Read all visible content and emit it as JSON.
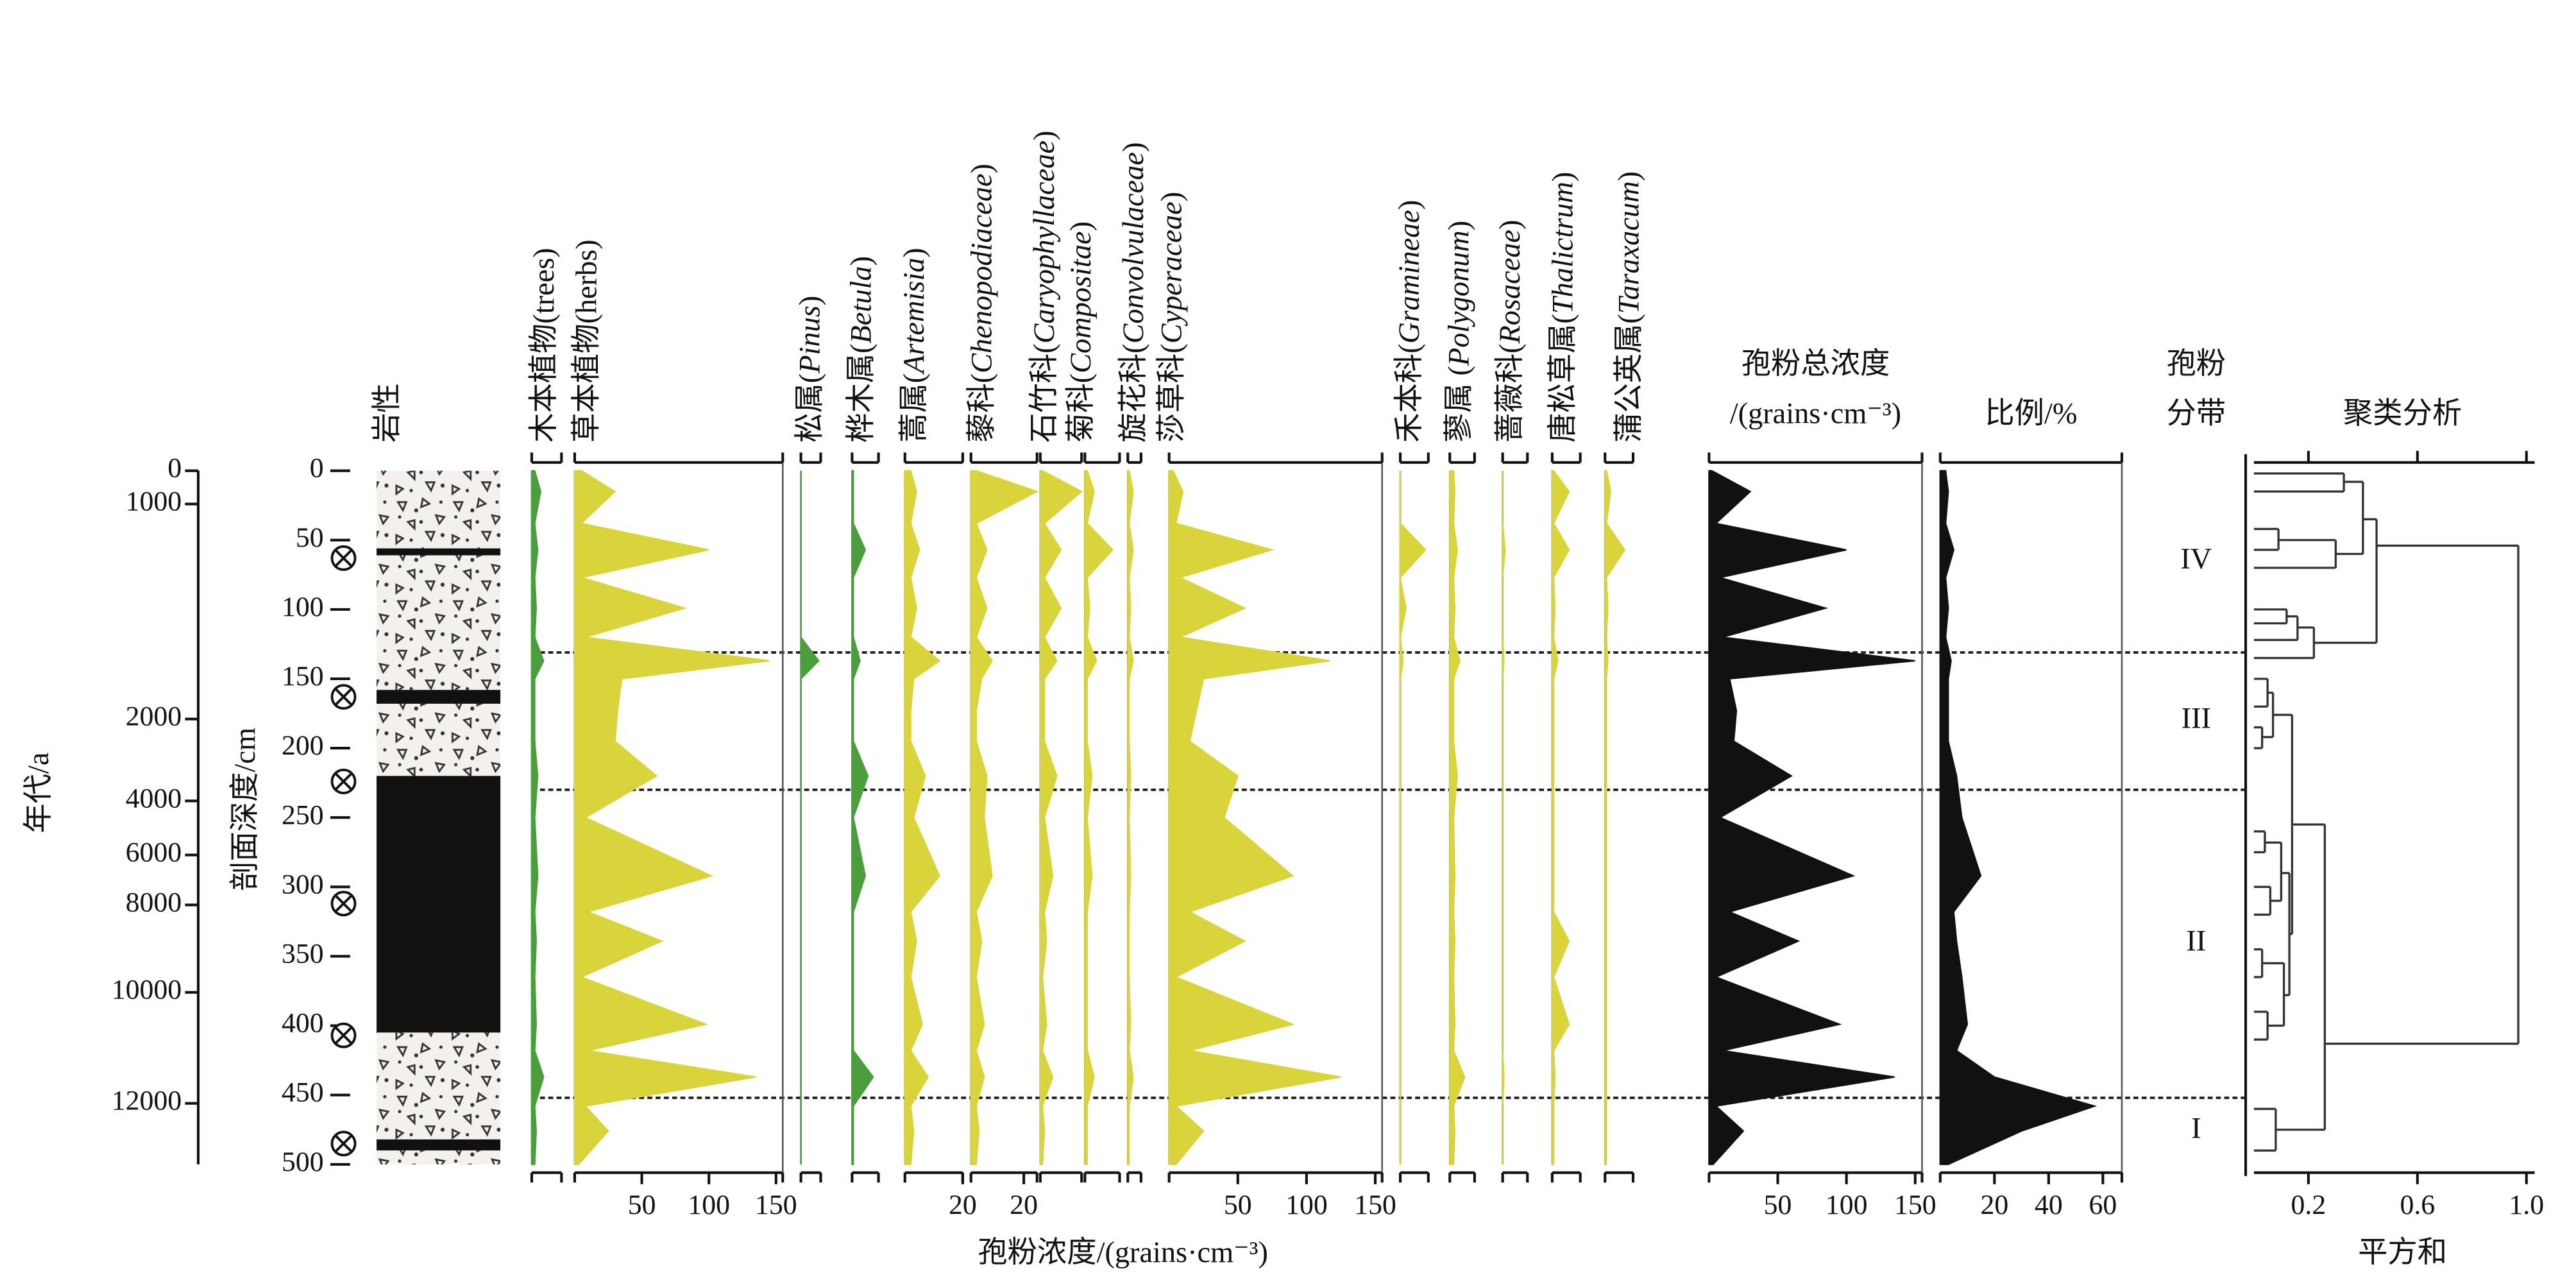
{
  "chart_data": {
    "type": "area",
    "x_label": "孢粉浓度/(grains·cm⁻³)",
    "age_label": "年代/a",
    "depth_label": "剖面深度/cm",
    "lithology_title": "岩性",
    "zone_title": [
      "孢粉",
      "分带"
    ],
    "ylim": [
      0,
      500
    ],
    "yticks": [
      0,
      50,
      100,
      150,
      200,
      250,
      300,
      350,
      400,
      450,
      500
    ],
    "age_ticks": [
      {
        "value": 0,
        "depth": 0
      },
      {
        "value": 1000,
        "depth": 24
      },
      {
        "value": 2000,
        "depth": 179
      },
      {
        "value": 4000,
        "depth": 238
      },
      {
        "value": 6000,
        "depth": 277
      },
      {
        "value": 8000,
        "depth": 313
      },
      {
        "value": 10000,
        "depth": 376
      },
      {
        "value": 12000,
        "depth": 456
      }
    ],
    "dating_depths": [
      63,
      163,
      224,
      312,
      407,
      485
    ],
    "lithology": [
      {
        "top": 0,
        "bottom": 56,
        "style": "gravel"
      },
      {
        "top": 56,
        "bottom": 61,
        "style": "clay"
      },
      {
        "top": 61,
        "bottom": 158,
        "style": "gravel"
      },
      {
        "top": 158,
        "bottom": 168,
        "style": "clay"
      },
      {
        "top": 168,
        "bottom": 220,
        "style": "gravel"
      },
      {
        "top": 220,
        "bottom": 405,
        "style": "clay"
      },
      {
        "top": 405,
        "bottom": 482,
        "style": "gravel"
      },
      {
        "top": 482,
        "bottom": 490,
        "style": "clay"
      },
      {
        "top": 490,
        "bottom": 500,
        "style": "gravel"
      }
    ],
    "zones": [
      {
        "label": "IV",
        "top": 0,
        "bottom": 131
      },
      {
        "label": "III",
        "top": 131,
        "bottom": 230
      },
      {
        "label": "II",
        "top": 230,
        "bottom": 452
      },
      {
        "label": "I",
        "top": 452,
        "bottom": 500
      }
    ],
    "depths": [
      0,
      15,
      38,
      57,
      77,
      99,
      120,
      137,
      150,
      173,
      195,
      220,
      250,
      292,
      318,
      339,
      365,
      399,
      418,
      437,
      458,
      476,
      500
    ],
    "panels": [
      {
        "label": "木本植物(trees)",
        "color": "#4a9e3c",
        "xlim": [
          0,
          10
        ],
        "values": [
          1,
          3,
          1,
          2,
          1,
          1.5,
          1,
          4,
          1,
          1,
          1,
          2,
          1,
          2,
          1,
          1.5,
          1,
          1.5,
          1,
          4,
          1,
          1.5,
          1
        ]
      },
      {
        "label": "草本植物(herbs)",
        "color": "#d9d43a",
        "xlim": [
          0,
          155
        ],
        "xticks": [
          50,
          100,
          150
        ],
        "values": [
          5,
          30,
          5,
          100,
          5,
          82,
          8,
          145,
          35,
          32,
          30,
          61,
          8,
          102,
          10,
          65,
          5,
          98,
          10,
          135,
          8,
          25,
          3
        ]
      },
      {
        "label": "松属(Pinus)",
        "italic": true,
        "color": "#4a9e3c",
        "xlim": [
          0,
          10
        ],
        "values": [
          0,
          0,
          0,
          0,
          0,
          0,
          0,
          9,
          0,
          0,
          0,
          0,
          0,
          0,
          0,
          0,
          0,
          0,
          0,
          0,
          0,
          0,
          0
        ]
      },
      {
        "label": "桦木属(Betula)",
        "italic": true,
        "color": "#4a9e3c",
        "xlim": [
          0,
          10
        ],
        "values": [
          0.5,
          0.5,
          0.5,
          5,
          0.5,
          0.5,
          0.5,
          3,
          0.5,
          0.5,
          0.5,
          6,
          0.5,
          5,
          0.5,
          0.5,
          0.5,
          0.5,
          0.5,
          8,
          0.5,
          0.5,
          0.5
        ]
      },
      {
        "label": "蒿属(Artemisia)",
        "italic": true,
        "color": "#d9d43a",
        "xlim": [
          0,
          20
        ],
        "xticks": [
          20
        ],
        "values": [
          2,
          4,
          2,
          5,
          2,
          4,
          2,
          12,
          3,
          2,
          2,
          7,
          3,
          12,
          2,
          4,
          2,
          6,
          2,
          8,
          2,
          3,
          2
        ]
      },
      {
        "label": "藜科(Chenopodiaceae)",
        "italic": true,
        "color": "#d9d43a",
        "xlim": [
          0,
          25
        ],
        "xticks": [
          20
        ],
        "values": [
          2,
          25,
          2,
          6,
          2,
          6,
          2,
          8,
          4,
          2,
          2,
          6,
          5,
          8,
          2,
          4,
          2,
          5,
          2,
          5,
          2,
          3,
          2
        ]
      },
      {
        "label": "石竹科(Caryophyllaceae)",
        "italic": true,
        "color": "#d9d43a",
        "xlim": [
          0,
          20
        ],
        "values": [
          1,
          20,
          2,
          10,
          2,
          10,
          2,
          8,
          2,
          2,
          2,
          8,
          2,
          6,
          2,
          3,
          1,
          3,
          1,
          6,
          1,
          2,
          1
        ]
      },
      {
        "label": "菊科(Compositae)",
        "italic": true,
        "color": "#d9d43a",
        "xlim": [
          0,
          15
        ],
        "values": [
          1,
          4,
          1,
          12,
          1,
          2,
          1,
          5,
          1,
          1,
          1,
          3,
          1,
          3,
          1,
          1,
          1,
          1,
          1,
          4,
          1,
          1,
          1
        ]
      },
      {
        "label": "旋花科(Convolvulaceae)",
        "italic": true,
        "color": "#d9d43a",
        "xlim": [
          0,
          5
        ],
        "values": [
          0.5,
          2,
          0.5,
          2,
          0.5,
          1,
          0.5,
          2,
          0.5,
          0.5,
          0.5,
          1,
          0.5,
          1,
          0.5,
          0.5,
          0.5,
          1,
          0.5,
          2,
          0.5,
          0.5,
          0.5
        ]
      },
      {
        "label": "莎草科(Cyperaceae)",
        "italic": true,
        "color": "#d9d43a",
        "xlim": [
          0,
          155
        ],
        "xticks": [
          50,
          100,
          150
        ],
        "values": [
          3,
          10,
          5,
          75,
          8,
          55,
          8,
          117,
          25,
          20,
          15,
          50,
          40,
          90,
          15,
          55,
          5,
          90,
          15,
          125,
          5,
          25,
          5
        ]
      },
      {
        "label": "禾本科(Gramineae)",
        "italic": true,
        "color": "#d9d43a",
        "xlim": [
          0,
          10
        ],
        "values": [
          0,
          0,
          0,
          9,
          0,
          2,
          0,
          1,
          0,
          0,
          0,
          0,
          0,
          0,
          0,
          0,
          0,
          0,
          0,
          0,
          0,
          0,
          0
        ]
      },
      {
        "label": "蓼属 (Polygonum)",
        "italic": true,
        "color": "#d9d43a",
        "xlim": [
          0,
          10
        ],
        "values": [
          1.5,
          2,
          1.5,
          3,
          1.5,
          2,
          1.5,
          4,
          1.5,
          1.5,
          1.5,
          3,
          1.5,
          2,
          1.5,
          2,
          1.5,
          2,
          1.5,
          6,
          1.5,
          2,
          1.5
        ]
      },
      {
        "label": "蔷薇科(Rosaceae)",
        "italic": true,
        "color": "#d9d43a",
        "xlim": [
          0,
          10
        ],
        "values": [
          0,
          0,
          0,
          1,
          0,
          0,
          0,
          0.5,
          0,
          0,
          0,
          0,
          0,
          0,
          0,
          0,
          0,
          0,
          0,
          0.5,
          0,
          0,
          0
        ]
      },
      {
        "label": "唐松草属(Thalictrum)",
        "italic": true,
        "color": "#d9d43a",
        "xlim": [
          0,
          10
        ],
        "values": [
          0.5,
          6,
          0.5,
          6,
          0.5,
          1,
          0.5,
          2,
          0.5,
          0.5,
          0.5,
          0.5,
          0.5,
          0.5,
          0.5,
          6,
          0.5,
          6,
          0.5,
          1,
          0.5,
          0.5,
          0.5
        ]
      },
      {
        "label": "蒲公英属(Taraxacum)",
        "italic": true,
        "color": "#d9d43a",
        "xlim": [
          0,
          10
        ],
        "values": [
          0.5,
          2,
          0.5,
          7,
          0.5,
          1,
          0.5,
          1,
          0.5,
          0.5,
          0.5,
          0.5,
          0.5,
          0.5,
          0.5,
          0.5,
          0.5,
          0.5,
          0.5,
          0.5,
          0.5,
          0.5,
          0.5
        ]
      },
      {
        "label": "孢粉总浓度",
        "sublabel": "/(grains·cm⁻³)",
        "color": "#111111",
        "xlim": [
          0,
          155
        ],
        "xticks": [
          50,
          100,
          150
        ],
        "values": [
          2,
          30,
          5,
          100,
          8,
          85,
          10,
          150,
          15,
          20,
          18,
          60,
          8,
          105,
          15,
          65,
          5,
          95,
          10,
          135,
          5,
          25,
          3
        ]
      },
      {
        "label": "比例/%",
        "color": "#111111",
        "xlim": [
          0,
          67
        ],
        "xticks": [
          20,
          40,
          60
        ],
        "values": [
          2,
          3,
          2,
          5,
          2,
          3,
          2,
          4,
          3,
          3,
          3,
          6,
          8,
          15,
          5,
          6,
          8,
          10,
          6,
          20,
          57,
          30,
          3
        ]
      }
    ],
    "cluster": {
      "title": "聚类分析",
      "xlabel": "平方和",
      "xlim": [
        0,
        1.03
      ],
      "xticks": [
        0.2,
        0.6,
        {
          "value": 1,
          "label": "1.0"
        }
      ],
      "merges": [
        {
          "h": 0.33,
          "top": [
            2,
            0
          ],
          "bottom": [
            15,
            0
          ]
        },
        {
          "h": 0.09,
          "top": [
            42,
            0
          ],
          "bottom": [
            57,
            0
          ]
        },
        {
          "h": 0.3,
          "top": [
            50,
            0.09
          ],
          "bottom": [
            70,
            0
          ]
        },
        {
          "h": 0.4,
          "top": [
            8,
            0.33
          ],
          "bottom": [
            60,
            0.3
          ]
        },
        {
          "h": 0.12,
          "top": [
            100,
            0
          ],
          "bottom": [
            110,
            0
          ]
        },
        {
          "h": 0.16,
          "top": [
            105,
            0.12
          ],
          "bottom": [
            122,
            0
          ]
        },
        {
          "h": 0.22,
          "top": [
            113,
            0.16
          ],
          "bottom": [
            135,
            0
          ]
        },
        {
          "h": 0.45,
          "top": [
            35,
            0.4
          ],
          "bottom": [
            124,
            0.22
          ]
        },
        {
          "h": 0.05,
          "top": [
            150,
            0
          ],
          "bottom": [
            170,
            0
          ]
        },
        {
          "h": 0.03,
          "top": [
            185,
            0
          ],
          "bottom": [
            200,
            0
          ]
        },
        {
          "h": 0.07,
          "top": [
            160,
            0.05
          ],
          "bottom": [
            192,
            0.03
          ]
        },
        {
          "h": 0.04,
          "top": [
            260,
            0
          ],
          "bottom": [
            275,
            0
          ]
        },
        {
          "h": 0.06,
          "top": [
            300,
            0
          ],
          "bottom": [
            320,
            0
          ]
        },
        {
          "h": 0.1,
          "top": [
            268,
            0.04
          ],
          "bottom": [
            310,
            0.06
          ]
        },
        {
          "h": 0.03,
          "top": [
            345,
            0
          ],
          "bottom": [
            365,
            0
          ]
        },
        {
          "h": 0.05,
          "top": [
            390,
            0
          ],
          "bottom": [
            410,
            0
          ]
        },
        {
          "h": 0.11,
          "top": [
            355,
            0.03
          ],
          "bottom": [
            400,
            0.05
          ]
        },
        {
          "h": 0.13,
          "top": [
            290,
            0.1
          ],
          "bottom": [
            378,
            0.11
          ]
        },
        {
          "h": 0.14,
          "top": [
            176,
            0.07
          ],
          "bottom": [
            334,
            0.13
          ]
        },
        {
          "h": 0.08,
          "top": [
            460,
            0
          ],
          "bottom": [
            490,
            0
          ]
        },
        {
          "h": 0.26,
          "top": [
            255,
            0.14
          ],
          "bottom": [
            475,
            0.08
          ]
        },
        {
          "h": 0.97,
          "top": [
            54,
            0.45
          ],
          "bottom": [
            413,
            0.26
          ]
        }
      ]
    }
  }
}
